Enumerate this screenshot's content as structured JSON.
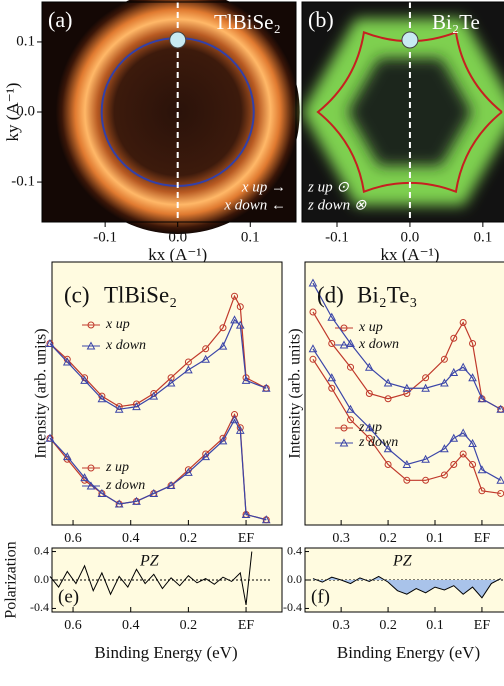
{
  "chart_data": [
    {
      "type": "image",
      "panel_label": "(a)",
      "title": "TlBiSe₂",
      "xlabel": "kx (A⁻¹)",
      "ylabel": "ky (A⁻¹)",
      "annotations": [
        "x up →",
        "x down ←"
      ],
      "xlim": [
        -0.187,
        0.163
      ],
      "ylim": [
        -0.157,
        0.157
      ],
      "xticks": [
        -0.1,
        {
          "value": 0,
          "label": "0.0"
        },
        0.1
      ],
      "yticks": [
        0.1,
        {
          "value": 0,
          "label": "0.0"
        },
        -0.1
      ]
    },
    {
      "type": "image",
      "panel_label": "(b)",
      "title": "Bi₂Te",
      "xlabel": "kx (A⁻¹)",
      "annotations": [
        "z up ⊙",
        "z down ⊗"
      ],
      "xlim": [
        -0.148,
        0.129
      ],
      "ylim": [
        -0.157,
        0.157
      ],
      "xticks": [
        -0.1,
        {
          "value": 0,
          "label": "0.0"
        },
        0.1
      ]
    },
    {
      "type": "line",
      "panel_label": "(c)",
      "title": "TlBiSe₂",
      "ylabel": "Intensity (arb. units)",
      "x": [
        0.68,
        0.62,
        0.56,
        0.5,
        0.44,
        0.38,
        0.32,
        0.26,
        0.2,
        0.14,
        0.08,
        0.04,
        0.02,
        0.0,
        -0.07
      ],
      "series": [
        {
          "name": "x up",
          "color": "#c0392b",
          "values": [
            69,
            63,
            56,
            49,
            45,
            46,
            50,
            56,
            62,
            67,
            75,
            87,
            83,
            56,
            52
          ]
        },
        {
          "name": "x down",
          "color": "#3b45a8",
          "values": [
            69,
            62,
            55,
            48,
            44,
            45,
            49,
            54,
            59,
            63,
            68,
            78,
            76,
            55,
            52
          ]
        },
        {
          "name": "z up",
          "color": "#c0392b",
          "values": [
            33,
            25,
            17,
            12,
            8,
            9,
            12,
            15,
            21,
            27,
            33,
            42,
            37,
            4,
            2
          ]
        },
        {
          "name": "z down",
          "color": "#3b45a8",
          "values": [
            33,
            26,
            18,
            12,
            8,
            9,
            12,
            15,
            20,
            26,
            32,
            40,
            36,
            4,
            2
          ]
        }
      ],
      "xlim": [
        0.673,
        -0.09
      ],
      "ylim": [
        0,
        100
      ],
      "xticks": [
        0.6,
        0.4,
        0.2,
        {
          "value": 0,
          "label": "EF"
        }
      ]
    },
    {
      "type": "line",
      "panel_label": "(d)",
      "title": "Bi₂Te₃",
      "ylabel": "Intensity (arb. units)",
      "x": [
        0.36,
        0.32,
        0.28,
        0.24,
        0.2,
        0.16,
        0.12,
        0.08,
        0.06,
        0.04,
        0.02,
        0.0,
        -0.04
      ],
      "series": [
        {
          "name": "x up",
          "color": "#c0392b",
          "values": [
            81,
            69,
            60,
            50,
            48,
            50,
            56,
            63,
            71,
            77,
            69,
            48,
            44
          ]
        },
        {
          "name": "x down",
          "color": "#3b45a8",
          "values": [
            92,
            79,
            69,
            60,
            54,
            52,
            52,
            54,
            58,
            60,
            56,
            48,
            44
          ]
        },
        {
          "name": "z up",
          "color": "#c0392b",
          "values": [
            63,
            52,
            40,
            33,
            23,
            17,
            17,
            19,
            23,
            27,
            23,
            13,
            12
          ]
        },
        {
          "name": "z down",
          "color": "#3b45a8",
          "values": [
            67,
            56,
            44,
            37,
            29,
            23,
            25,
            29,
            33,
            35,
            31,
            21,
            17
          ]
        }
      ],
      "xlim": [
        0.377,
        -0.047
      ],
      "ylim": [
        0,
        100
      ],
      "xticks": [
        0.3,
        0.2,
        0.1,
        {
          "value": 0,
          "label": "EF"
        }
      ]
    },
    {
      "type": "line",
      "panel_label": "(e)",
      "title": "PZ",
      "ylabel": "Polarization",
      "xlabel": "Binding Energy (eV)",
      "x": [
        0.68,
        0.65,
        0.62,
        0.59,
        0.56,
        0.53,
        0.5,
        0.47,
        0.44,
        0.41,
        0.38,
        0.35,
        0.32,
        0.29,
        0.26,
        0.23,
        0.2,
        0.17,
        0.14,
        0.11,
        0.08,
        0.05,
        0.02,
        0.0,
        -0.02
      ],
      "series": [
        {
          "color": "#000000",
          "values": [
            0.05,
            -0.1,
            0.12,
            -0.05,
            0.2,
            -0.15,
            0.1,
            -0.2,
            0.05,
            -0.1,
            0.15,
            -0.05,
            0.08,
            -0.12,
            0.03,
            -0.08,
            0.06,
            -0.04,
            0.02,
            -0.06,
            0.04,
            -0.02,
            0.1,
            -0.35,
            0.4
          ]
        }
      ],
      "xlim": [
        0.673,
        -0.09
      ],
      "ylim": [
        -0.45,
        0.45
      ],
      "xticks": [
        0.6,
        0.4,
        0.2,
        {
          "value": 0,
          "label": "EF"
        }
      ],
      "yticks": [
        0.4,
        {
          "value": 0,
          "label": "0.0"
        },
        -0.4
      ]
    },
    {
      "type": "line",
      "panel_label": "(f)",
      "title": "PZ",
      "xlabel": "Binding Energy (eV)",
      "fill": "#a9c3ea",
      "x": [
        0.36,
        0.34,
        0.32,
        0.3,
        0.28,
        0.26,
        0.24,
        0.22,
        0.2,
        0.18,
        0.16,
        0.14,
        0.12,
        0.1,
        0.08,
        0.06,
        0.04,
        0.02,
        0.0,
        -0.02,
        -0.04
      ],
      "series": [
        {
          "color": "#000000",
          "values": [
            0.02,
            -0.03,
            0.04,
            0.0,
            -0.05,
            0.03,
            -0.02,
            0.05,
            -0.03,
            -0.15,
            -0.2,
            -0.12,
            -0.18,
            -0.1,
            -0.14,
            -0.08,
            -0.2,
            -0.1,
            -0.25,
            -0.05,
            0.02
          ]
        }
      ],
      "xlim": [
        0.377,
        -0.047
      ],
      "ylim": [
        -0.45,
        0.45
      ],
      "xticks": [
        0.3,
        0.2,
        0.1,
        {
          "value": 0,
          "label": "EF"
        }
      ],
      "yticks": [
        0.4,
        {
          "value": 0,
          "label": "0.0"
        },
        -0.4
      ]
    }
  ]
}
